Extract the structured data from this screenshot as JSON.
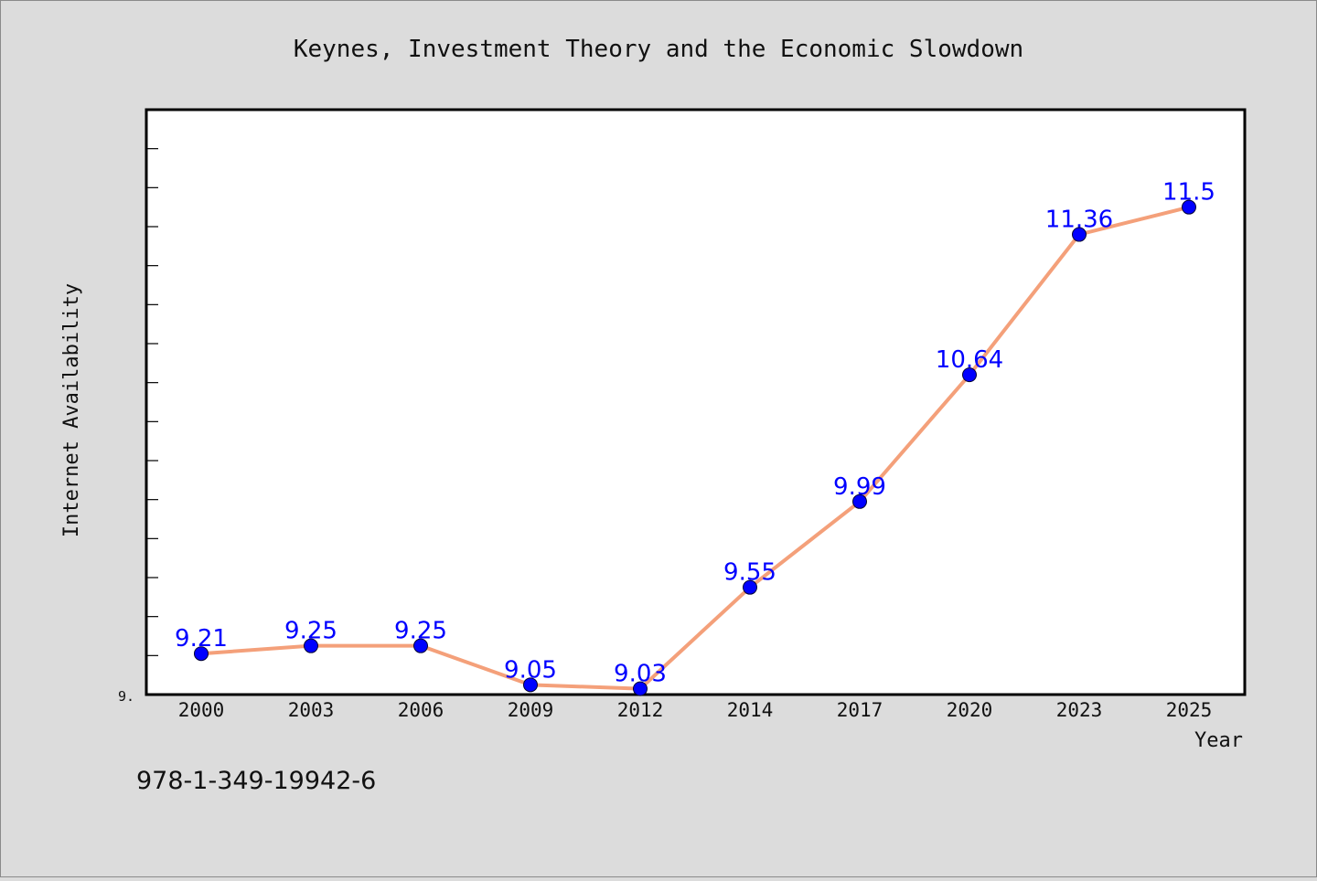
{
  "chart_data": {
    "type": "line",
    "title": "Keynes, Investment Theory and the Economic Slowdown",
    "xlabel": "Year",
    "ylabel": "Internet Availability",
    "categories": [
      "2000",
      "2003",
      "2006",
      "2009",
      "2012",
      "2014",
      "2017",
      "2020",
      "2023",
      "2025"
    ],
    "series": [
      {
        "values": [
          9.21,
          9.25,
          9.25,
          9.05,
          9.03,
          9.55,
          9.99,
          10.64,
          11.36,
          11.5
        ]
      }
    ],
    "ylim": [
      9.0,
      12.0
    ],
    "y_tick_labels": [
      "9."
    ],
    "grid": false,
    "colors": {
      "line": "#f4a07a",
      "marker": "#0000ff",
      "label": "#0000ff",
      "background": "#dcdcdc",
      "plot_background": "#ffffff"
    }
  },
  "footer_text": "978-1-349-19942-6"
}
